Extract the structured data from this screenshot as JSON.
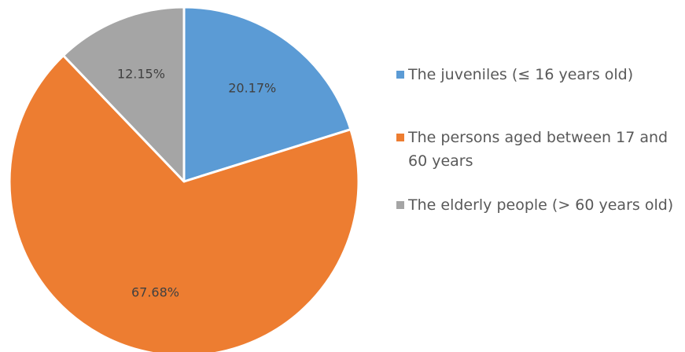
{
  "chart_data": {
    "type": "pie",
    "title": "",
    "categories": [
      "The juveniles (≤ 16 years old)",
      "The persons aged between 17 and 60 years",
      "The elderly people (> 60 years old)"
    ],
    "values": [
      20.17,
      67.68,
      12.15
    ],
    "labels": [
      "20.17%",
      "67.68%",
      "12.15%"
    ],
    "colors": [
      "#5b9bd5",
      "#ed7d31",
      "#a5a5a5"
    ],
    "start_angle_deg": 0,
    "direction": "clockwise",
    "legend_position": "right"
  }
}
